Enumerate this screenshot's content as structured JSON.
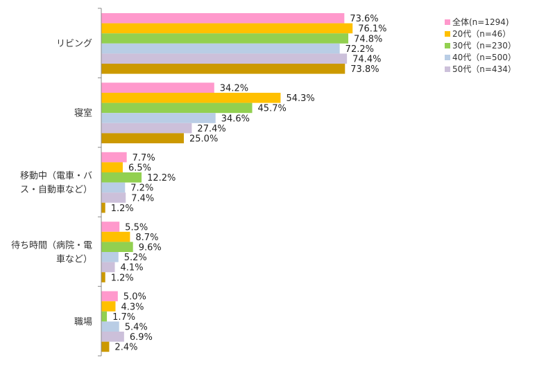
{
  "chart_data": {
    "type": "bar",
    "orientation": "horizontal",
    "categories": [
      [
        "リビング"
      ],
      [
        "寝室"
      ],
      [
        "移動中（電車・バ",
        "ス・自動車など）"
      ],
      [
        "待ち時間（病院・電",
        "車など）"
      ],
      [
        "職場"
      ]
    ],
    "series": [
      {
        "name": "全体(n=1294)",
        "color": "#ff99cc",
        "values": [
          73.6,
          34.2,
          7.7,
          5.5,
          5.0
        ]
      },
      {
        "name": "20代（n=46）",
        "color": "#ffc000",
        "values": [
          76.1,
          54.3,
          6.5,
          8.7,
          4.3
        ]
      },
      {
        "name": "30代（n=230）",
        "color": "#92d050",
        "values": [
          74.8,
          45.7,
          12.2,
          9.6,
          1.7
        ]
      },
      {
        "name": "40代（n=500）",
        "color": "#b9cde5",
        "values": [
          72.2,
          34.6,
          7.2,
          5.2,
          5.4
        ]
      },
      {
        "name": "50代（n=434）",
        "color": "#ccc0da",
        "values": [
          74.4,
          27.4,
          7.4,
          4.1,
          6.9
        ]
      },
      {
        "name": "",
        "color": "#cc9900",
        "values": [
          73.8,
          25.0,
          1.2,
          1.2,
          2.4
        ]
      }
    ],
    "value_suffix": "%",
    "xlim": [
      0,
      100
    ],
    "grid": false,
    "legend_position": "top-right"
  }
}
